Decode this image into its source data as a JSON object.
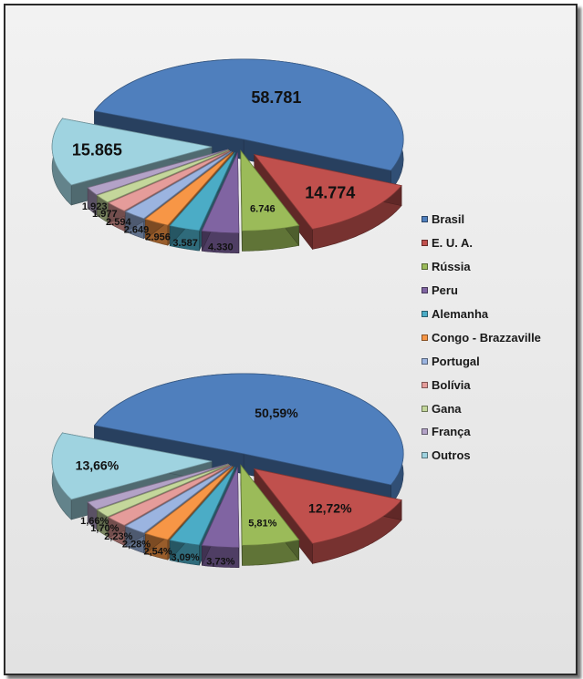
{
  "chart_data": [
    {
      "type": "pie",
      "title": "",
      "categories": [
        "Brasil",
        "E. U. A.",
        "Rússia",
        "Peru",
        "Alemanha",
        "Congo - Brazzaville",
        "Portugal",
        "Bolívia",
        "Gana",
        "França",
        "Outros"
      ],
      "values": [
        58781,
        14774,
        6746,
        4330,
        3587,
        2956,
        2649,
        2594,
        1977,
        1923,
        15865
      ],
      "labels": [
        "58.781",
        "14.774",
        "6.746",
        "4.330",
        "3.587",
        "2.956",
        "2.649",
        "2.594",
        "1.977",
        "1.923",
        "15.865"
      ],
      "style": "3d-exploded"
    },
    {
      "type": "pie",
      "title": "",
      "categories": [
        "Brasil",
        "E. U. A.",
        "Rússia",
        "Peru",
        "Alemanha",
        "Congo - Brazzaville",
        "Portugal",
        "Bolívia",
        "Gana",
        "França",
        "Outros"
      ],
      "values": [
        50.59,
        12.72,
        5.81,
        3.73,
        3.09,
        2.54,
        2.28,
        2.23,
        1.7,
        1.66,
        13.66
      ],
      "labels": [
        "50,59%",
        "12,72%",
        "5,81%",
        "3,73%",
        "3,09%",
        "2,54%",
        "2,28%",
        "2,23%",
        "1,70%",
        "1,66%",
        "13,66%"
      ],
      "style": "3d-exploded"
    }
  ],
  "legend": {
    "placement": "right",
    "items": [
      {
        "label": "Brasil",
        "color": "#4f7fbd"
      },
      {
        "label": "E. U. A.",
        "color": "#c0504d"
      },
      {
        "label": "Rússia",
        "color": "#9bbb59"
      },
      {
        "label": "Peru",
        "color": "#8064a2"
      },
      {
        "label": "Alemanha",
        "color": "#4bacc6"
      },
      {
        "label": "Congo - Brazzaville",
        "color": "#f79646"
      },
      {
        "label": "Portugal",
        "color": "#9bb4e0"
      },
      {
        "label": "Bolívia",
        "color": "#e59c9a"
      },
      {
        "label": "Gana",
        "color": "#c4d79b"
      },
      {
        "label": "França",
        "color": "#b3a2c7"
      },
      {
        "label": "Outros",
        "color": "#9fd3e0"
      }
    ]
  }
}
